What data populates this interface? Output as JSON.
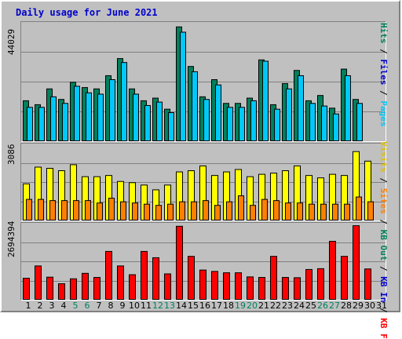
{
  "title": "Daily usage for June 2021",
  "colors": {
    "hits": "#00805c",
    "files": "#00c8f8",
    "visits": "#ffff00",
    "sites": "#ff8000",
    "kbytes": "#ff0000",
    "weekend_label": "#00805f"
  },
  "legend": {
    "hits_panel": [
      {
        "text": "Hits",
        "color": "#00805c"
      },
      {
        "text": "Files",
        "color": "#0000cc"
      },
      {
        "text": "Pages",
        "color": "#00c8f8"
      }
    ],
    "visits_panel": [
      {
        "text": "Visits",
        "color": "#e0c000"
      },
      {
        "text": "Sites",
        "color": "#ff8000"
      },
      {
        "text": "KB Out",
        "color": "#00805c"
      },
      {
        "text": "KB In",
        "color": "#0000cc"
      },
      {
        "text": "KB F",
        "color": "#ff0000"
      }
    ]
  },
  "chart_data": [
    {
      "type": "bar",
      "ymax_label": "44029",
      "ylim": [
        0,
        44029
      ],
      "categories": [
        "1",
        "2",
        "3",
        "4",
        "5",
        "6",
        "7",
        "8",
        "9",
        "10",
        "11",
        "12",
        "13",
        "14",
        "15",
        "16",
        "17",
        "18",
        "19",
        "20",
        "21",
        "22",
        "23",
        "24",
        "25",
        "26",
        "27",
        "28",
        "29",
        "30",
        "31"
      ],
      "series": [
        {
          "name": "Hits",
          "values": [
            15500,
            14000,
            20000,
            16000,
            22500,
            20500,
            20000,
            25000,
            31500,
            20000,
            15500,
            16500,
            12300,
            43500,
            28500,
            17000,
            23500,
            14500,
            14500,
            16500,
            31000,
            14000,
            22000,
            27000,
            15500,
            17500,
            12700,
            27500,
            16000,
            0,
            0
          ]
        },
        {
          "name": "Files",
          "values": [
            13000,
            13000,
            17000,
            14500,
            21000,
            18500,
            18000,
            23500,
            30000,
            18000,
            13700,
            15000,
            11000,
            41500,
            26500,
            16000,
            21500,
            13000,
            13000,
            15500,
            30500,
            12300,
            20000,
            25000,
            14500,
            13500,
            10500,
            25000,
            14500,
            0,
            0
          ]
        }
      ],
      "grid": true
    },
    {
      "type": "bar",
      "ymax_label": "3086",
      "ylim": [
        0,
        3086
      ],
      "categories": [
        "1",
        "2",
        "3",
        "4",
        "5",
        "6",
        "7",
        "8",
        "9",
        "10",
        "11",
        "12",
        "13",
        "14",
        "15",
        "16",
        "17",
        "18",
        "19",
        "20",
        "21",
        "22",
        "23",
        "24",
        "25",
        "26",
        "27",
        "28",
        "29",
        "30",
        "31"
      ],
      "series": [
        {
          "name": "Visits",
          "values": [
            1550,
            2250,
            2200,
            2100,
            2350,
            1850,
            1850,
            1900,
            1650,
            1600,
            1500,
            1300,
            1500,
            2050,
            2100,
            2300,
            1900,
            2050,
            2150,
            1850,
            1950,
            2000,
            2100,
            2300,
            1900,
            1800,
            1950,
            1900,
            2900,
            2500,
            0
          ]
        },
        {
          "name": "Sites",
          "values": [
            900,
            900,
            850,
            850,
            850,
            850,
            750,
            950,
            800,
            750,
            700,
            650,
            700,
            800,
            800,
            850,
            650,
            800,
            1050,
            650,
            900,
            850,
            750,
            750,
            700,
            700,
            700,
            700,
            1000,
            800,
            0
          ]
        }
      ],
      "grid": true
    },
    {
      "type": "bar",
      "ymax_label": "2694394",
      "ylim": [
        0,
        2694394
      ],
      "categories": [
        "1",
        "2",
        "3",
        "4",
        "5",
        "6",
        "7",
        "8",
        "9",
        "10",
        "11",
        "12",
        "13",
        "14",
        "15",
        "16",
        "17",
        "18",
        "19",
        "20",
        "21",
        "22",
        "23",
        "24",
        "25",
        "26",
        "27",
        "28",
        "29",
        "30",
        "31"
      ],
      "series": [
        {
          "name": "KB F",
          "values": [
            800000,
            1250000,
            840000,
            600000,
            780000,
            980000,
            830000,
            1780000,
            1250000,
            930000,
            1780000,
            1550000,
            960000,
            2700000,
            1600000,
            1100000,
            1050000,
            1000000,
            1000000,
            850000,
            830000,
            1600000,
            830000,
            820000,
            1120000,
            1150000,
            2150000,
            1600000,
            2720000,
            1140000,
            0
          ]
        }
      ],
      "grid": true
    }
  ],
  "weekend_days": [
    "5",
    "6",
    "12",
    "13",
    "19",
    "20",
    "26",
    "27"
  ]
}
